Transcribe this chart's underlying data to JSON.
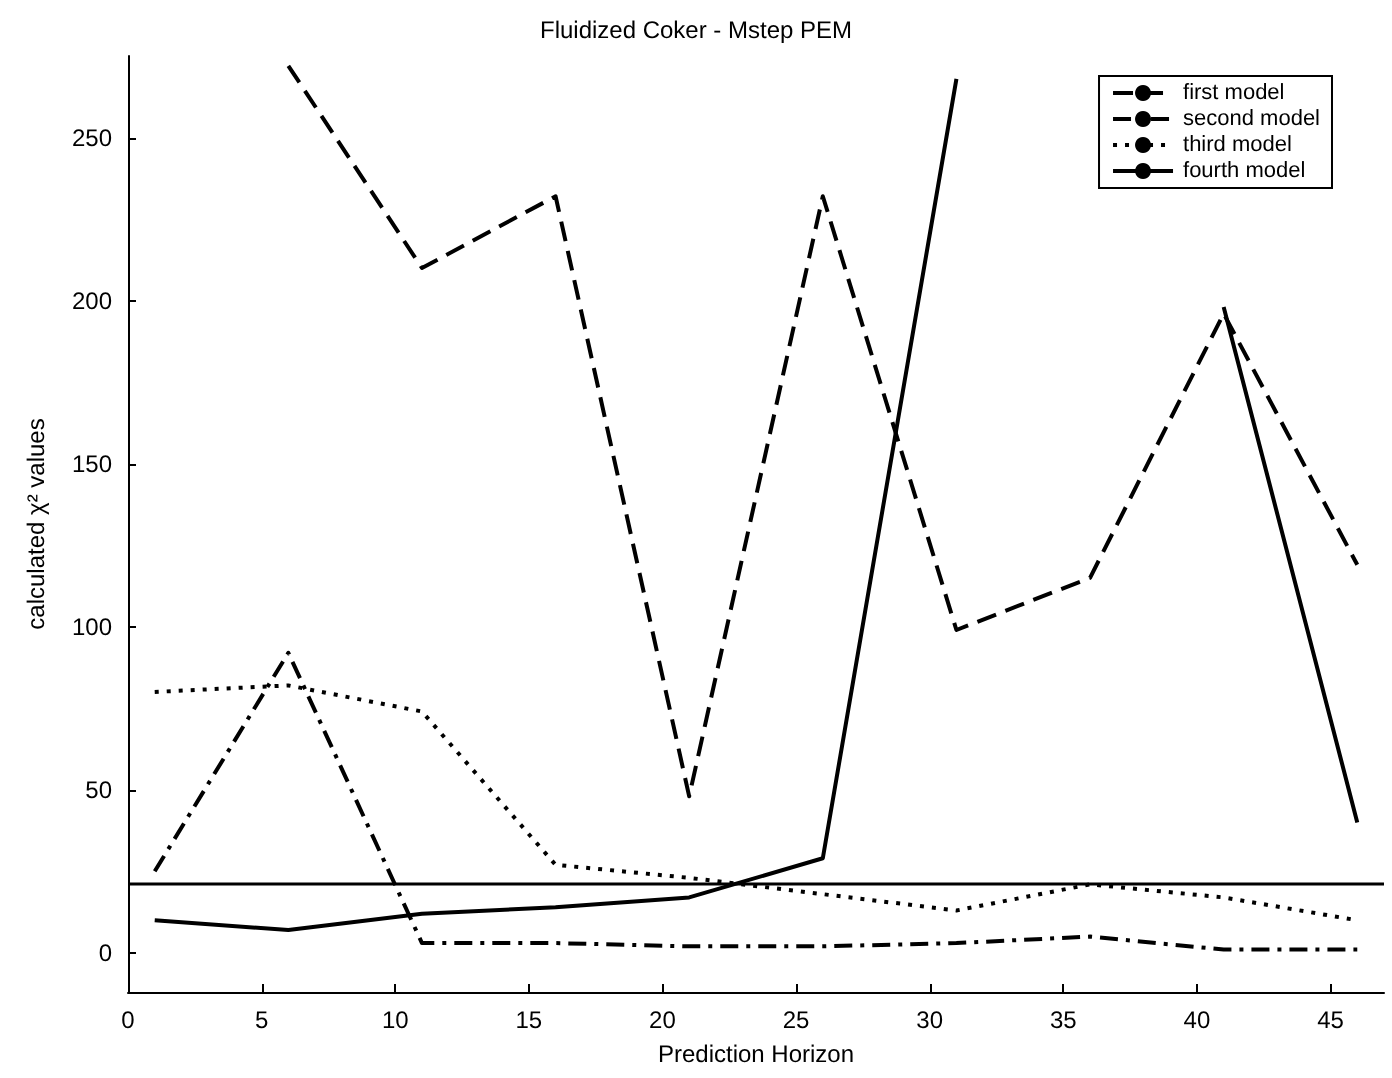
{
  "chart_data": {
    "type": "line",
    "title": "Fluidized Coker - Mstep PEM",
    "xlabel": "Prediction Horizon",
    "ylabel": "calculated χ² values",
    "x": [
      1,
      6,
      11,
      16,
      21,
      26,
      31,
      36,
      41,
      46
    ],
    "series": [
      {
        "name": "first model",
        "color": "#000000",
        "line_style": "dashed",
        "values": [
          null,
          272,
          210,
          232,
          48,
          232,
          99,
          115,
          196,
          119
        ]
      },
      {
        "name": "second model",
        "color": "#000000",
        "line_style": "dashdot",
        "values": [
          25,
          92,
          3,
          3,
          2,
          2,
          3,
          5,
          1,
          1
        ]
      },
      {
        "name": "third model",
        "color": "#000000",
        "line_style": "dotted",
        "values": [
          80,
          82,
          74,
          27,
          23,
          18,
          13,
          21,
          17,
          10
        ]
      },
      {
        "name": "fourth model",
        "color": "#000000",
        "line_style": "solid",
        "values": [
          10,
          7,
          12,
          14,
          17,
          29,
          268,
          null,
          198,
          40
        ]
      }
    ],
    "xlim": [
      0,
      47
    ],
    "xticks": [
      0,
      5,
      10,
      15,
      20,
      25,
      30,
      35,
      40,
      45
    ],
    "ylim": [
      -12,
      275
    ],
    "yticks": [
      0,
      50,
      100,
      150,
      200,
      250
    ],
    "ref_lines": [
      {
        "axis": "y",
        "value": 21,
        "color": "#000000"
      }
    ],
    "grid": false,
    "legend": "top right",
    "marker": "none"
  }
}
